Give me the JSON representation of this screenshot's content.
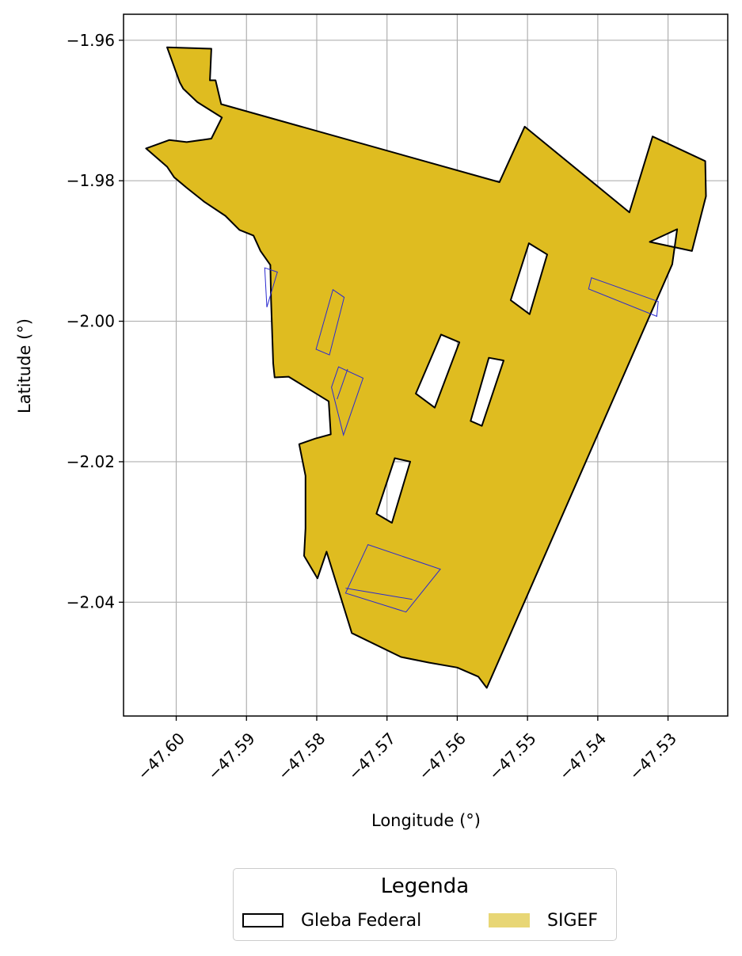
{
  "chart_data": {
    "type": "map",
    "xlabel": "Longitude (°)",
    "ylabel": "Latitude (°)",
    "xlim": [
      -47.6075,
      -47.5215
    ],
    "ylim": [
      -2.0562,
      -1.9563
    ],
    "grid": true,
    "xticks": [
      -47.6,
      -47.59,
      -47.58,
      -47.57,
      -47.56,
      -47.55,
      -47.54,
      -47.53
    ],
    "xtick_labels": [
      "−47.60",
      "−47.59",
      "−47.58",
      "−47.57",
      "−47.56",
      "−47.55",
      "−47.54",
      "−47.53"
    ],
    "yticks": [
      -1.96,
      -1.98,
      -2.0,
      -2.02,
      -2.04
    ],
    "ytick_labels": [
      "−1.96",
      "−1.98",
      "−2.00",
      "−2.02",
      "−2.04"
    ],
    "legend": {
      "title": "Legenda",
      "placement": "bottom-center",
      "entries": [
        {
          "label": "Gleba Federal",
          "style": "outline",
          "color": "#000000"
        },
        {
          "label": "SIGEF",
          "style": "fill",
          "color": "#e8d675"
        }
      ]
    },
    "colors": {
      "sigef_fill": "#dfbc20",
      "gleba_outline": "#000000",
      "parcel_outline": "#2a2ad0"
    },
    "layers": {
      "sigef_outer": [
        [
          -47.6013,
          -1.961
        ],
        [
          -47.595,
          -1.9612
        ],
        [
          -47.5952,
          -1.9657
        ],
        [
          -47.5944,
          -1.9657
        ],
        [
          -47.5936,
          -1.9691
        ],
        [
          -47.554,
          -1.9802
        ],
        [
          -47.5504,
          -1.9723
        ],
        [
          -47.5355,
          -1.9845
        ],
        [
          -47.5322,
          -1.9737
        ],
        [
          -47.5247,
          -1.9772
        ],
        [
          -47.5246,
          -1.9822
        ],
        [
          -47.5266,
          -1.99
        ],
        [
          -47.5326,
          -1.9887
        ],
        [
          -47.5287,
          -1.9869
        ],
        [
          -47.5294,
          -1.9919
        ],
        [
          -47.5558,
          -2.0522
        ],
        [
          -47.557,
          -2.0506
        ],
        [
          -47.56,
          -2.0493
        ],
        [
          -47.564,
          -2.0486
        ],
        [
          -47.568,
          -2.0478
        ],
        [
          -47.575,
          -2.0444
        ],
        [
          -47.5786,
          -2.0328
        ],
        [
          -47.5799,
          -2.0366
        ],
        [
          -47.5818,
          -2.0334
        ],
        [
          -47.5816,
          -2.0295
        ],
        [
          -47.5816,
          -2.022
        ],
        [
          -47.5825,
          -2.0175
        ],
        [
          -47.5802,
          -2.0167
        ],
        [
          -47.578,
          -2.0161
        ],
        [
          -47.5783,
          -2.0114
        ],
        [
          -47.584,
          -2.0079
        ],
        [
          -47.586,
          -2.008
        ],
        [
          -47.5862,
          -2.006
        ],
        [
          -47.5865,
          -1.997
        ],
        [
          -47.5866,
          -1.992
        ],
        [
          -47.588,
          -1.99
        ],
        [
          -47.589,
          -1.9878
        ],
        [
          -47.591,
          -1.987
        ],
        [
          -47.593,
          -1.985
        ],
        [
          -47.596,
          -1.983
        ],
        [
          -47.5985,
          -1.981
        ],
        [
          -47.6003,
          -1.9795
        ],
        [
          -47.6013,
          -1.978
        ],
        [
          -47.6043,
          -1.9754
        ],
        [
          -47.601,
          -1.9742
        ],
        [
          -47.5985,
          -1.9745
        ],
        [
          -47.595,
          -1.974
        ],
        [
          -47.5935,
          -1.971
        ],
        [
          -47.597,
          -1.9688
        ],
        [
          -47.599,
          -1.9669
        ],
        [
          -47.5995,
          -1.966
        ]
      ],
      "gleba_holes": [
        [
          [
            -47.5524,
            -1.997
          ],
          [
            -47.5498,
            -1.9889
          ],
          [
            -47.5472,
            -1.9905
          ],
          [
            -47.5497,
            -1.999
          ],
          [
            -47.5524,
            -1.997
          ]
        ],
        [
          [
            -47.5659,
            -2.0103
          ],
          [
            -47.5623,
            -2.0019
          ],
          [
            -47.5597,
            -2.003
          ],
          [
            -47.5632,
            -2.0123
          ],
          [
            -47.5659,
            -2.0103
          ]
        ],
        [
          [
            -47.5581,
            -2.0142
          ],
          [
            -47.5555,
            -2.0052
          ],
          [
            -47.5534,
            -2.0056
          ],
          [
            -47.5565,
            -2.0149
          ],
          [
            -47.5581,
            -2.0142
          ]
        ],
        [
          [
            -47.5715,
            -2.0274
          ],
          [
            -47.5689,
            -2.0195
          ],
          [
            -47.5667,
            -2.02
          ],
          [
            -47.5693,
            -2.0287
          ],
          [
            -47.5715,
            -2.0274
          ]
        ]
      ],
      "sigef_parcels": [
        [
          [
            -47.5874,
            -1.9924
          ],
          [
            -47.5856,
            -1.993
          ],
          [
            -47.5871,
            -1.998
          ],
          [
            -47.5874,
            -1.9924
          ]
        ],
        [
          [
            -47.5801,
            -2.004
          ],
          [
            -47.5777,
            -1.9955
          ],
          [
            -47.5761,
            -1.9966
          ],
          [
            -47.5782,
            -2.0048
          ],
          [
            -47.5801,
            -2.004
          ]
        ],
        [
          [
            -47.5779,
            -2.0094
          ],
          [
            -47.5769,
            -2.0065
          ],
          [
            -47.5734,
            -2.0081
          ],
          [
            -47.5762,
            -2.0162
          ],
          [
            -47.5779,
            -2.0094
          ]
        ],
        [
          [
            -47.5771,
            -2.0111
          ],
          [
            -47.5756,
            -2.0068
          ]
        ],
        [
          [
            -47.5727,
            -2.0318
          ],
          [
            -47.5759,
            -2.0387
          ],
          [
            -47.5673,
            -2.0414
          ],
          [
            -47.5624,
            -2.0353
          ],
          [
            -47.5727,
            -2.0318
          ]
        ],
        [
          [
            -47.5759,
            -2.038
          ],
          [
            -47.5664,
            -2.0396
          ]
        ],
        [
          [
            -47.5409,
            -1.9938
          ],
          [
            -47.5413,
            -1.9954
          ],
          [
            -47.5316,
            -1.9993
          ],
          [
            -47.5314,
            -1.9972
          ],
          [
            -47.5409,
            -1.9938
          ]
        ]
      ]
    }
  }
}
